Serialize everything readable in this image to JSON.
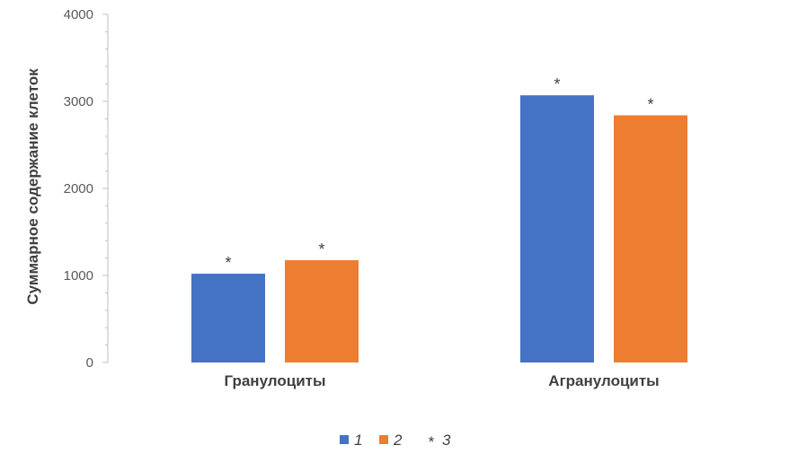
{
  "chart_data": {
    "type": "bar",
    "title": "",
    "ylabel": "Суммарное содержание клеток",
    "xlabel": "",
    "ylim": [
      0,
      4000
    ],
    "yticks": [
      0,
      1000,
      2000,
      3000,
      4000
    ],
    "categories": [
      "Гранулоциты",
      "Агранулоциты"
    ],
    "series": [
      {
        "name": "1",
        "color": "#4472C4",
        "values": [
          1020,
          3070
        ],
        "marks": [
          "*",
          "*"
        ]
      },
      {
        "name": "2",
        "color": "#ED7D31",
        "values": [
          1175,
          2840
        ],
        "marks": [
          "*",
          "*"
        ]
      }
    ],
    "legend": {
      "position": "bottom",
      "items": [
        {
          "label": "1",
          "symbol": "square",
          "color": "#4472C4"
        },
        {
          "label": "2",
          "symbol": "square",
          "color": "#ED7D31"
        },
        {
          "label": "3",
          "symbol": "*",
          "color": "#404040"
        }
      ]
    },
    "grid": false
  }
}
